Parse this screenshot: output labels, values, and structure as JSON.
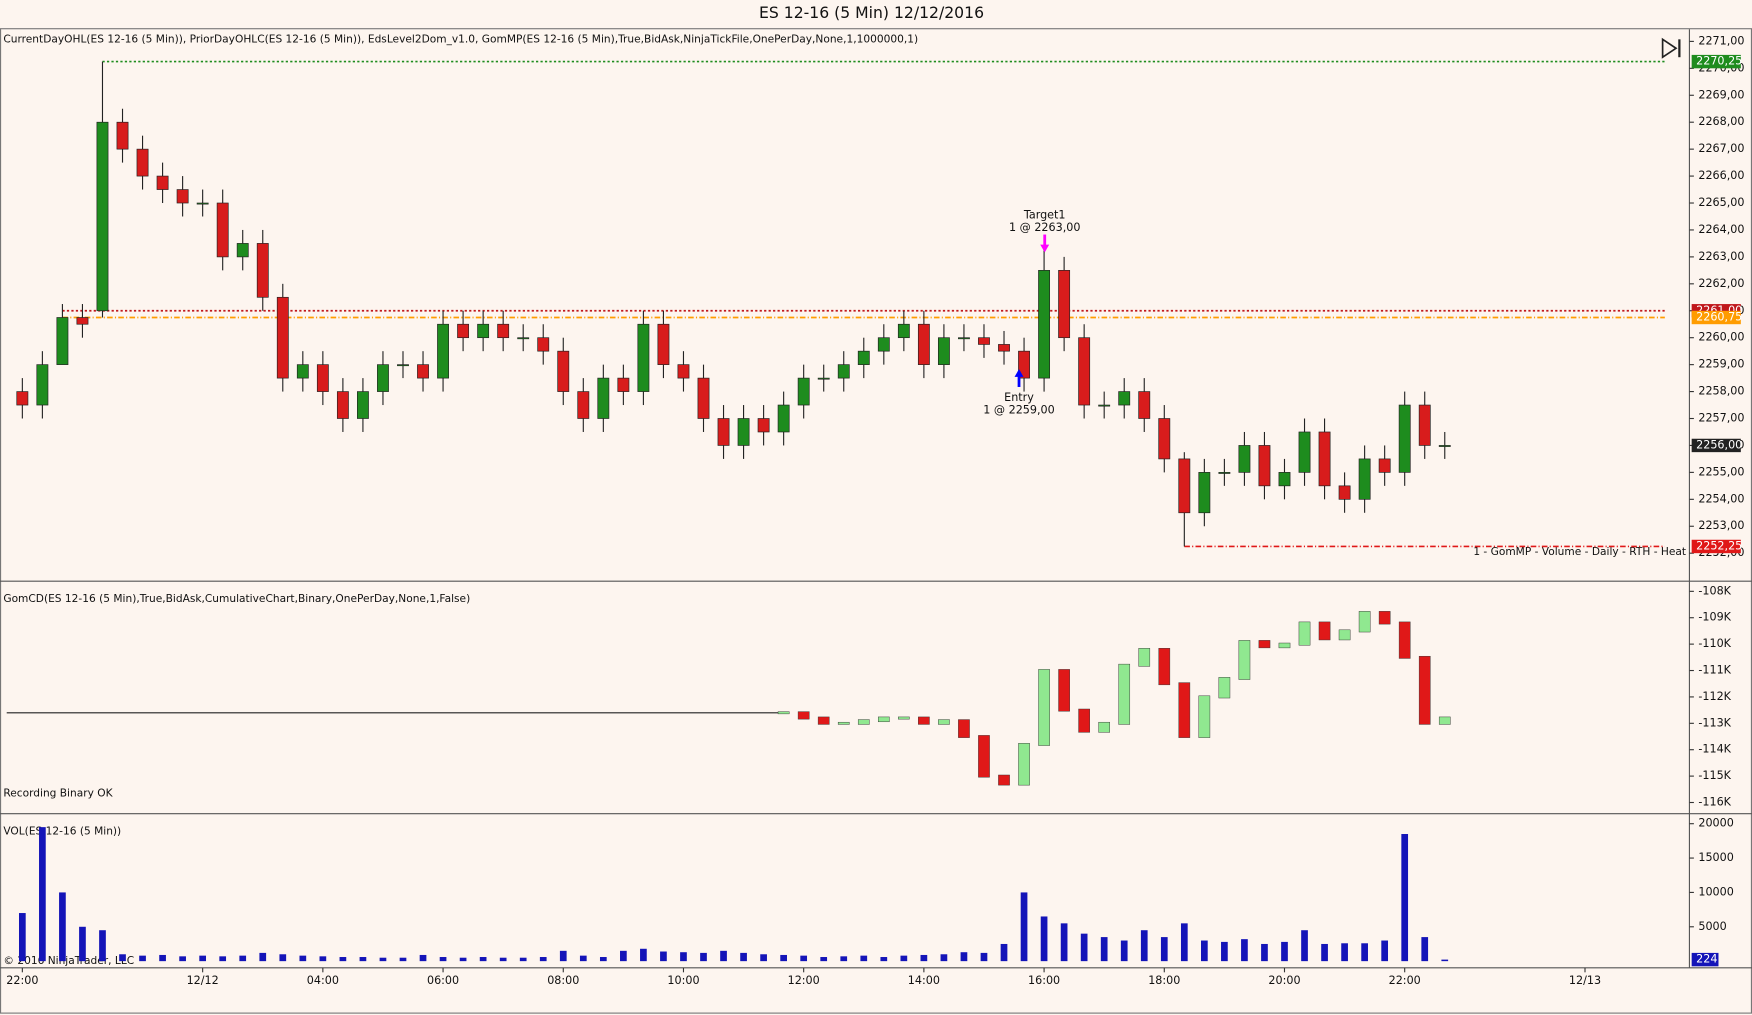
{
  "copyright": "© 2016 NinjaTrader, LLC",
  "chart_data": [
    {
      "type": "candlestick",
      "title": "ES 12-16 (5 Min)  12/12/2016",
      "indicator_label": "CurrentDayOHL(ES 12-16 (5 Min)), PriorDayOHLC(ES 12-16 (5 Min)), EdsLevel2Dom_v1.0, GomMP(ES 12-16 (5 Min),True,BidAsk,NinjaTickFile,OnePerDay,None,1,1000000,1)",
      "profile_label": "1 - GomMP - Volume - Daily - RTH - Heat",
      "up_color": "#1e8c1e",
      "down_color": "#d81c1c",
      "open": [
        2258,
        2257.5,
        2259,
        2260.75,
        2261,
        2268,
        2267,
        2266,
        2265.5,
        2265,
        2265,
        2263,
        2263.5,
        2261.5,
        2258.5,
        2259,
        2258,
        2257,
        2258,
        2259,
        2259,
        2258.5,
        2260.5,
        2260,
        2260.5,
        2260,
        2260,
        2259.5,
        2258,
        2257,
        2258.5,
        2258,
        2260.5,
        2259,
        2258.5,
        2257,
        2256,
        2257,
        2256.5,
        2257.5,
        2258.5,
        2258.5,
        2259,
        2259.5,
        2260,
        2260.5,
        2259,
        2260,
        2260,
        2259.75,
        2259.5,
        2258.5,
        2262.5,
        2260,
        2257.5,
        2257.5,
        2258,
        2257,
        2255.5,
        2253.5,
        2255,
        2255,
        2256,
        2254.5,
        2255,
        2256.5,
        2254.5,
        2254,
        2255.5,
        2255,
        2257.5,
        2256,
        null,
        null,
        null,
        null,
        null,
        null,
        null
      ],
      "high": [
        2258.5,
        2259.5,
        2261.25,
        2261.25,
        2270.25,
        2268.5,
        2267.5,
        2266.5,
        2266,
        2265.5,
        2265.5,
        2264,
        2264,
        2262,
        2259.5,
        2259.5,
        2258.5,
        2258.5,
        2259.5,
        2259.5,
        2259.5,
        2261,
        2261,
        2261,
        2261,
        2260.5,
        2260.5,
        2260,
        2258.5,
        2259,
        2259,
        2261,
        2261,
        2259.5,
        2259,
        2257.5,
        2257.5,
        2257.5,
        2258,
        2259,
        2259,
        2259.5,
        2260,
        2260.5,
        2261,
        2261,
        2260.5,
        2260.5,
        2260.5,
        2260.25,
        2260,
        2263.5,
        2263,
        2260.5,
        2258,
        2258.5,
        2258.5,
        2257.5,
        2255.75,
        2255.5,
        2255.5,
        2256.5,
        2256.5,
        2255.5,
        2257,
        2257,
        2255,
        2256,
        2256,
        2258,
        2258,
        2256.5,
        null,
        null,
        null,
        null,
        null,
        null,
        null
      ],
      "low": [
        2257,
        2257,
        2259,
        2260,
        2260.75,
        2266.5,
        2265.5,
        2265,
        2264.5,
        2264.5,
        2262.5,
        2262.5,
        2261,
        2258,
        2258,
        2257.5,
        2256.5,
        2256.5,
        2257.5,
        2258.5,
        2258,
        2258,
        2259.5,
        2259.5,
        2259.5,
        2259.5,
        2259,
        2257.5,
        2256.5,
        2256.5,
        2257.5,
        2257.5,
        2258.5,
        2258,
        2256.5,
        2255.5,
        2255.5,
        2256,
        2256,
        2257,
        2258,
        2258,
        2258.5,
        2259,
        2259.5,
        2258.5,
        2258.5,
        2259.5,
        2259.25,
        2259,
        2258,
        2258,
        2259.5,
        2257,
        2257,
        2257,
        2256.5,
        2255,
        2252.25,
        2253,
        2254.5,
        2254.5,
        2254,
        2254,
        2254.5,
        2254,
        2253.5,
        2253.5,
        2254.5,
        2254.5,
        2255.5,
        2255.5,
        null,
        null,
        null,
        null,
        null,
        null,
        null
      ],
      "close": [
        2257.5,
        2259,
        2260.75,
        2260.5,
        2268,
        2267,
        2266,
        2265.5,
        2265,
        2265,
        2263,
        2263.5,
        2261.5,
        2258.5,
        2259,
        2258,
        2257,
        2258,
        2259,
        2259,
        2258.5,
        2260.5,
        2260,
        2260.5,
        2260,
        2260,
        2259.5,
        2258,
        2257,
        2258.5,
        2258,
        2260.5,
        2259,
        2258.5,
        2257,
        2256,
        2257,
        2256.5,
        2257.5,
        2258.5,
        2258.5,
        2259,
        2259.5,
        2260,
        2260.5,
        2259,
        2260,
        2260,
        2259.75,
        2259.5,
        2258.5,
        2262.5,
        2260,
        2257.5,
        2257.5,
        2258,
        2257,
        2255.5,
        2253.5,
        2255,
        2255,
        2256,
        2254.5,
        2255,
        2256.5,
        2254.5,
        2254,
        2255.5,
        2255,
        2257.5,
        2256,
        2256,
        null,
        null,
        null,
        null,
        null,
        null,
        null
      ],
      "ylim": [
        2251,
        2271.45
      ],
      "yticks": [
        {
          "value": 2252,
          "label": "2252,00"
        },
        {
          "value": 2253,
          "label": "2253,00"
        },
        {
          "value": 2254,
          "label": "2254,00"
        },
        {
          "value": 2255,
          "label": "2255,00"
        },
        {
          "value": 2256,
          "label": "2256,00"
        },
        {
          "value": 2257,
          "label": "2257,00"
        },
        {
          "value": 2258,
          "label": "2258,00"
        },
        {
          "value": 2259,
          "label": "2259,00"
        },
        {
          "value": 2260,
          "label": "2260,00"
        },
        {
          "value": 2261,
          "label": "2261,00"
        },
        {
          "value": 2262,
          "label": "2262,00"
        },
        {
          "value": 2263,
          "label": "2263,00"
        },
        {
          "value": 2264,
          "label": "2264,00"
        },
        {
          "value": 2265,
          "label": "2265,00"
        },
        {
          "value": 2266,
          "label": "2266,00"
        },
        {
          "value": 2267,
          "label": "2267,00"
        },
        {
          "value": 2268,
          "label": "2268,00"
        },
        {
          "value": 2269,
          "label": "2269,00"
        },
        {
          "value": 2270,
          "label": "2270,00"
        },
        {
          "value": 2271,
          "label": "2271,00"
        }
      ],
      "levels": [
        {
          "value": 2270.25,
          "label": "2270,25",
          "color": "#1e8c1e",
          "style": "dotted"
        },
        {
          "value": 2261,
          "label": "2261,00",
          "color": "#c0181c",
          "style": "dotted"
        },
        {
          "value": 2260.75,
          "label": "2260,75",
          "color": "#ff9c00",
          "style": "dashed"
        },
        {
          "value": 2256,
          "label": "2256,00",
          "color": "#222222",
          "style": "none"
        },
        {
          "value": 2252.25,
          "label": "2252,25",
          "color": "#e01818",
          "style": "dashed"
        }
      ],
      "annotations": [
        {
          "text": "Target1",
          "label": "1 @ 2263,00",
          "value": 2263,
          "color": "#ff00ff"
        },
        {
          "text": "Entry",
          "label": "1 @ 2259,00",
          "value": 2259,
          "color": "#0000ff"
        }
      ]
    },
    {
      "type": "cumulative-delta",
      "indicator_label": "GomCD(ES 12-16 (5 Min),True,BidAsk,CumulativeChart,Binary,OnePerDay,None,1,False)",
      "status": "Recording Binary OK",
      "up_color": "#90e890",
      "down_color": "#e01818",
      "baseline": -112600,
      "values": [
        null,
        null,
        null,
        null,
        null,
        null,
        null,
        null,
        null,
        null,
        null,
        null,
        null,
        null,
        null,
        null,
        null,
        null,
        null,
        null,
        null,
        null,
        null,
        null,
        null,
        null,
        null,
        null,
        null,
        null,
        null,
        null,
        null,
        null,
        null,
        null,
        null,
        null,
        -112600,
        -112800,
        -113000,
        -113000,
        -112900,
        -112800,
        -112800,
        -113000,
        -112900,
        -113500,
        -115000,
        -115300,
        -113800,
        -111000,
        -112500,
        -113300,
        -113000,
        -110800,
        -110200,
        -111500,
        -113500,
        -112000,
        -111300,
        -109900,
        -110100,
        -110000,
        -109200,
        -109800,
        -109500,
        -108800,
        -109200,
        -110500,
        -113000,
        -112800,
        null,
        null,
        null,
        null,
        null,
        null,
        null
      ],
      "ylim": [
        -116380,
        -107660
      ],
      "yticks": [
        {
          "value": -108000,
          "label": "-108K"
        },
        {
          "value": -109000,
          "label": "-109K"
        },
        {
          "value": -110000,
          "label": "-110K"
        },
        {
          "value": -111000,
          "label": "-111K"
        },
        {
          "value": -112000,
          "label": "-112K"
        },
        {
          "value": -113000,
          "label": "-113K"
        },
        {
          "value": -114000,
          "label": "-114K"
        },
        {
          "value": -115000,
          "label": "-115K"
        },
        {
          "value": -116000,
          "label": "-116K"
        }
      ]
    },
    {
      "type": "bar",
      "indicator_label": "VOL(ES 12-16 (5 Min))",
      "color": "#1414b8",
      "categories": [
        "22:00",
        null,
        null,
        null,
        null,
        null,
        null,
        null,
        null,
        "12/12",
        null,
        null,
        null,
        null,
        null,
        "04:00",
        null,
        null,
        null,
        null,
        null,
        "06:00",
        null,
        null,
        null,
        null,
        null,
        "08:00",
        null,
        null,
        null,
        null,
        null,
        "10:00",
        null,
        null,
        null,
        null,
        null,
        "12:00",
        null,
        null,
        null,
        null,
        null,
        "14:00",
        null,
        null,
        null,
        null,
        null,
        "16:00",
        null,
        null,
        null,
        null,
        null,
        "18:00",
        null,
        null,
        null,
        null,
        null,
        "20:00",
        null,
        null,
        null,
        null,
        null,
        "22:00",
        null,
        null,
        null,
        null,
        null,
        null,
        null,
        null,
        "12/13"
      ],
      "values": [
        7000,
        19500,
        10000,
        5000,
        4500,
        1000,
        800,
        900,
        700,
        800,
        700,
        800,
        1200,
        1000,
        800,
        700,
        600,
        600,
        500,
        500,
        900,
        600,
        500,
        600,
        500,
        500,
        600,
        1500,
        800,
        600,
        1500,
        1800,
        1400,
        1300,
        1200,
        1500,
        1200,
        1000,
        900,
        800,
        600,
        700,
        800,
        600,
        800,
        900,
        1000,
        1300,
        1200,
        2500,
        10000,
        6500,
        5500,
        4000,
        3500,
        3000,
        4500,
        3500,
        5500,
        3000,
        2800,
        3200,
        2500,
        2800,
        4500,
        2500,
        2600,
        2600,
        3000,
        18500,
        3500,
        224,
        null,
        null,
        null,
        null,
        null,
        null,
        null
      ],
      "ylim": [
        0,
        21300
      ],
      "yticks": [
        5000,
        10000,
        15000,
        20000
      ]
    }
  ]
}
